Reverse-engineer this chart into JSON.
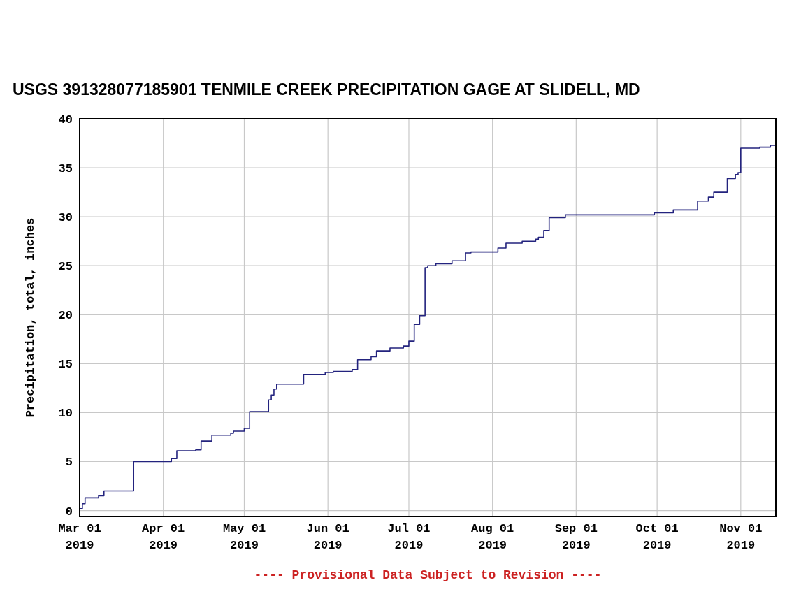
{
  "chart_data": {
    "type": "step",
    "title": "USGS 391328077185901 TENMILE CREEK PRECIPITATION GAGE AT SLIDELL, MD",
    "ylabel": "Precipitation, total, inches",
    "annotations": [
      "---- Provisional Data Subject to Revision ----"
    ],
    "x": [
      "2019-03-01",
      "2019-03-02",
      "2019-03-03",
      "2019-03-08",
      "2019-03-10",
      "2019-03-21",
      "2019-04-04",
      "2019-04-06",
      "2019-04-13",
      "2019-04-15",
      "2019-04-19",
      "2019-04-26",
      "2019-04-27",
      "2019-05-01",
      "2019-05-03",
      "2019-05-04",
      "2019-05-10",
      "2019-05-11",
      "2019-05-12",
      "2019-05-13",
      "2019-05-23",
      "2019-05-31",
      "2019-06-03",
      "2019-06-10",
      "2019-06-12",
      "2019-06-17",
      "2019-06-19",
      "2019-06-24",
      "2019-06-29",
      "2019-07-01",
      "2019-07-03",
      "2019-07-05",
      "2019-07-07",
      "2019-07-08",
      "2019-07-11",
      "2019-07-17",
      "2019-07-22",
      "2019-07-24",
      "2019-08-03",
      "2019-08-06",
      "2019-08-12",
      "2019-08-17",
      "2019-08-18",
      "2019-08-20",
      "2019-08-22",
      "2019-08-28",
      "2019-09-30",
      "2019-10-07",
      "2019-10-16",
      "2019-10-20",
      "2019-10-22",
      "2019-10-27",
      "2019-10-30",
      "2019-10-31",
      "2019-11-01",
      "2019-11-08",
      "2019-11-12",
      "2019-11-14"
    ],
    "series": [
      {
        "color": "#23237e",
        "values": [
          0.2,
          0.7,
          1.3,
          1.5,
          2.0,
          5.0,
          5.3,
          6.1,
          6.2,
          7.1,
          7.7,
          7.9,
          8.1,
          8.4,
          10.1,
          10.1,
          11.3,
          11.8,
          12.4,
          12.9,
          13.9,
          14.1,
          14.2,
          14.4,
          15.4,
          15.7,
          16.3,
          16.6,
          16.8,
          17.3,
          19.0,
          19.9,
          24.8,
          25.0,
          25.2,
          25.5,
          26.3,
          26.4,
          26.8,
          27.3,
          27.5,
          27.7,
          27.9,
          28.6,
          29.9,
          30.2,
          30.4,
          30.7,
          31.6,
          32.0,
          32.5,
          33.9,
          34.3,
          34.5,
          37.0,
          37.1,
          37.3,
          37.3
        ]
      }
    ],
    "xlim": [
      "2019-03-01",
      "2019-11-14"
    ],
    "xticks": [
      {
        "value": "2019-03-01",
        "label": "Mar 01\n2019"
      },
      {
        "value": "2019-04-01",
        "label": "Apr 01\n2019"
      },
      {
        "value": "2019-05-01",
        "label": "May 01\n2019"
      },
      {
        "value": "2019-06-01",
        "label": "Jun 01\n2019"
      },
      {
        "value": "2019-07-01",
        "label": "Jul 01\n2019"
      },
      {
        "value": "2019-08-01",
        "label": "Aug 01\n2019"
      },
      {
        "value": "2019-09-01",
        "label": "Sep 01\n2019"
      },
      {
        "value": "2019-10-01",
        "label": "Oct 01\n2019"
      },
      {
        "value": "2019-11-01",
        "label": "Nov 01\n2019"
      }
    ],
    "ylim": [
      -0.6,
      40
    ],
    "yticks": [
      0,
      5,
      10,
      15,
      20,
      25,
      30,
      35,
      40
    ],
    "grid": true,
    "line_style": "solid"
  }
}
